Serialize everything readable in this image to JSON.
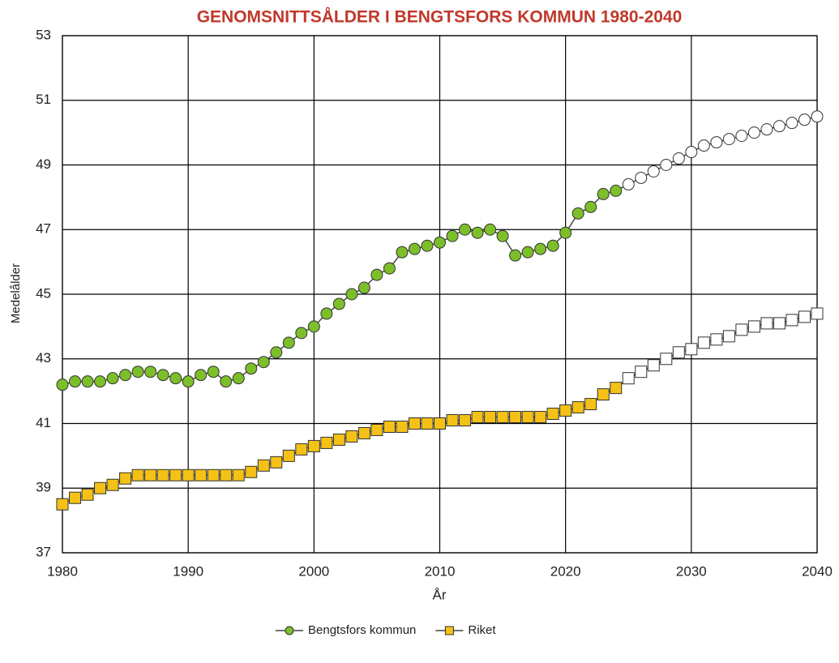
{
  "chart_data": {
    "type": "line",
    "title": "GENOMSNITTSÅLDER I BENGTSFORS KOMMUN 1980-2040",
    "x_label": "År",
    "y_label": "Medelålder",
    "x": [
      1980,
      1981,
      1982,
      1983,
      1984,
      1985,
      1986,
      1987,
      1988,
      1989,
      1990,
      1991,
      1992,
      1993,
      1994,
      1995,
      1996,
      1997,
      1998,
      1999,
      2000,
      2001,
      2002,
      2003,
      2004,
      2005,
      2006,
      2007,
      2008,
      2009,
      2010,
      2011,
      2012,
      2013,
      2014,
      2015,
      2016,
      2017,
      2018,
      2019,
      2020,
      2021,
      2022,
      2023,
      2024,
      2025,
      2026,
      2027,
      2028,
      2029,
      2030,
      2031,
      2032,
      2033,
      2034,
      2035,
      2036,
      2037,
      2038,
      2039,
      2040
    ],
    "series": [
      {
        "name": "Bengtsfors kommun",
        "color": "#7cbf2a",
        "marker": "circle",
        "hollow_from": 2025,
        "values": [
          42.2,
          42.3,
          42.3,
          42.3,
          42.4,
          42.5,
          42.6,
          42.6,
          42.5,
          42.4,
          42.3,
          42.5,
          42.6,
          42.3,
          42.4,
          42.7,
          42.9,
          43.2,
          43.5,
          43.8,
          44.0,
          44.4,
          44.7,
          45.0,
          45.2,
          45.6,
          45.8,
          46.3,
          46.4,
          46.5,
          46.6,
          46.8,
          47.0,
          46.9,
          47.0,
          46.8,
          46.2,
          46.3,
          46.4,
          46.5,
          46.9,
          47.5,
          47.7,
          48.1,
          48.2,
          48.4,
          48.6,
          48.8,
          49.0,
          49.2,
          49.4,
          49.6,
          49.7,
          49.8,
          49.9,
          50.0,
          50.1,
          50.2,
          50.3,
          50.4,
          50.5
        ]
      },
      {
        "name": "Riket",
        "color": "#f5c116",
        "marker": "square",
        "hollow_from": 2025,
        "values": [
          38.5,
          38.7,
          38.8,
          39.0,
          39.1,
          39.3,
          39.4,
          39.4,
          39.4,
          39.4,
          39.4,
          39.4,
          39.4,
          39.4,
          39.4,
          39.5,
          39.7,
          39.8,
          40.0,
          40.2,
          40.3,
          40.4,
          40.5,
          40.6,
          40.7,
          40.8,
          40.9,
          40.9,
          41.0,
          41.0,
          41.0,
          41.1,
          41.1,
          41.2,
          41.2,
          41.2,
          41.2,
          41.2,
          41.2,
          41.3,
          41.4,
          41.5,
          41.6,
          41.9,
          42.1,
          42.4,
          42.6,
          42.8,
          43.0,
          43.2,
          43.3,
          43.5,
          43.6,
          43.7,
          43.9,
          44.0,
          44.1,
          44.1,
          44.2,
          44.3,
          44.4
        ]
      }
    ],
    "xlim": [
      1980,
      2040
    ],
    "xticks": [
      1980,
      1990,
      2000,
      2010,
      2020,
      2030,
      2040
    ],
    "ylim": [
      37,
      53
    ],
    "yticks": [
      37,
      39,
      41,
      43,
      45,
      47,
      49,
      51,
      53
    ],
    "grid": true,
    "legend": "bottom"
  }
}
